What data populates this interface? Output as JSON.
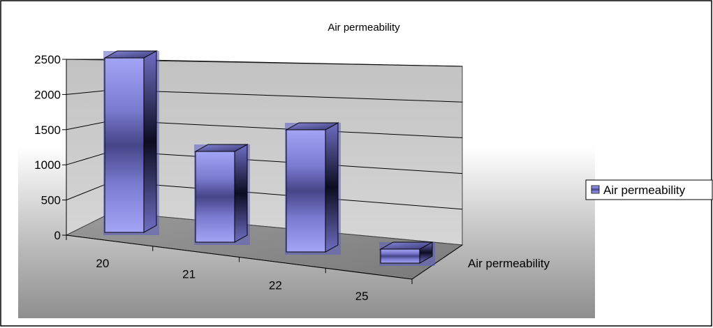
{
  "chart_data": {
    "type": "bar",
    "title": "Air permeability",
    "categories": [
      "20",
      "21",
      "22",
      "25"
    ],
    "series": [
      {
        "name": "Air permeability",
        "values": [
          2500,
          1300,
          1750,
          200
        ]
      }
    ],
    "ylim": [
      0,
      2500
    ],
    "yticks": [
      "0",
      "500",
      "1000",
      "1500",
      "2000",
      "2500"
    ],
    "series_axis_label": "Air permeability",
    "legend": "right",
    "grid": true,
    "style": "3d-column"
  },
  "colors": {
    "bar_light": "#9a9af2",
    "bar_dark": "#1c1c42",
    "back_wall": "#c0c0c0",
    "floor_light": "#ececec",
    "floor_dark": "#858585"
  }
}
